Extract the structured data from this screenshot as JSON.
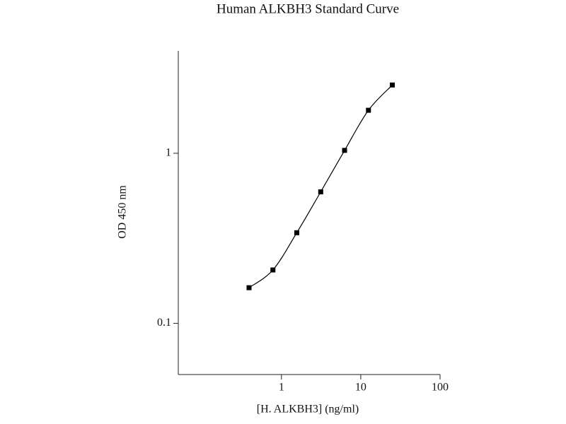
{
  "chart_data": {
    "type": "line",
    "title": "Human ALKBH3 Standard Curve",
    "x_label": "[H. ALKBH3] (ng/ml)",
    "y_label": "OD 450 nm",
    "xscale": "log",
    "yscale": "log",
    "xlim": [
      0.05,
      100
    ],
    "ylim": [
      0.05,
      4
    ],
    "xticks": [
      1,
      10,
      100
    ],
    "yticks": [
      0.1,
      1
    ],
    "series": [
      {
        "color": "#000000",
        "x": [
          0.39,
          0.78,
          1.56,
          3.125,
          6.25,
          12.5,
          25
        ],
        "values": [
          0.162,
          0.206,
          0.341,
          0.593,
          1.04,
          1.79,
          2.52
        ]
      }
    ]
  }
}
